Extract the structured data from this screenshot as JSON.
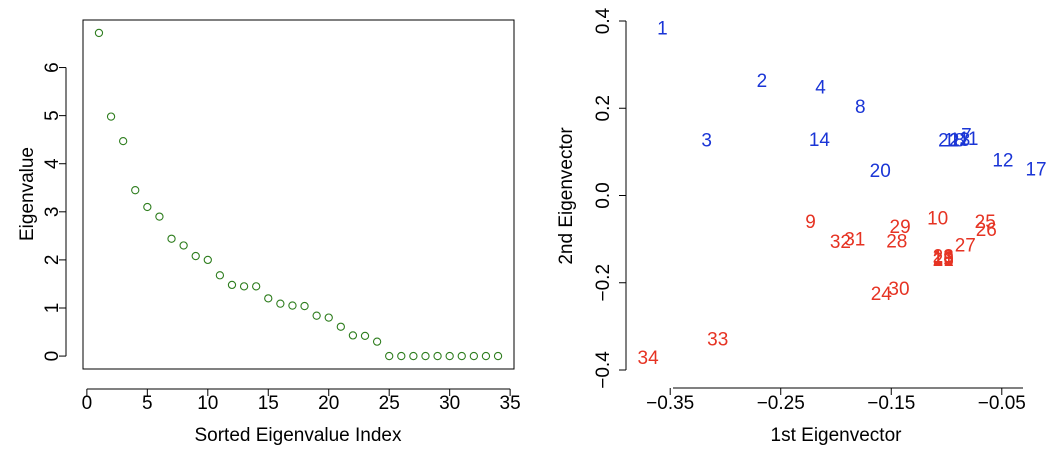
{
  "colors": {
    "scatter_point": "#2e7d1e",
    "group_blue": "#1a35d6",
    "group_red": "#e63323",
    "axis": "#000000"
  },
  "chart_data": [
    {
      "type": "scatter",
      "xlabel": "Sorted Eigenvalue Index",
      "ylabel": "Eigenvalue",
      "xlim": [
        0,
        35
      ],
      "ylim": [
        0,
        6.8
      ],
      "xticks": [
        0,
        5,
        10,
        15,
        20,
        25,
        30,
        35
      ],
      "yticks": [
        0,
        1,
        2,
        3,
        4,
        5,
        6
      ],
      "grid": false,
      "marker": "open-circle",
      "x": [
        1,
        2,
        3,
        4,
        5,
        6,
        7,
        8,
        9,
        10,
        11,
        12,
        13,
        14,
        15,
        16,
        17,
        18,
        19,
        20,
        21,
        22,
        23,
        24,
        25,
        26,
        27,
        28,
        29,
        30,
        31,
        32,
        33,
        34
      ],
      "y": [
        6.72,
        4.98,
        4.47,
        3.45,
        3.1,
        2.9,
        2.44,
        2.3,
        2.08,
        2.0,
        1.68,
        1.48,
        1.45,
        1.45,
        1.2,
        1.09,
        1.05,
        1.04,
        0.84,
        0.8,
        0.61,
        0.43,
        0.42,
        0.3,
        0,
        0,
        0,
        0,
        0,
        0,
        0,
        0,
        0,
        0
      ]
    },
    {
      "type": "scatter",
      "xlabel": "1st Eigenvector",
      "ylabel": "2nd Eigenvector",
      "xlim": [
        -0.39,
        -0.01
      ],
      "ylim": [
        -0.4,
        0.4
      ],
      "xticks": [
        -0.35,
        -0.25,
        -0.15,
        -0.05
      ],
      "xtick_labels": [
        "−0.35",
        "−0.25",
        "−0.15",
        "−0.05"
      ],
      "yticks": [
        -0.4,
        -0.2,
        0.0,
        0.2,
        0.4
      ],
      "ytick_labels": [
        "−0.4",
        "−0.2",
        "0.0",
        "0.2",
        "0.4"
      ],
      "grid": false,
      "marker": "text-label",
      "points": [
        {
          "label": "1",
          "x": -0.357,
          "y": 0.385,
          "group": "blue"
        },
        {
          "label": "2",
          "x": -0.267,
          "y": 0.265,
          "group": "blue"
        },
        {
          "label": "4",
          "x": -0.214,
          "y": 0.25,
          "group": "blue"
        },
        {
          "label": "8",
          "x": -0.178,
          "y": 0.205,
          "group": "blue"
        },
        {
          "label": "3",
          "x": -0.317,
          "y": 0.128,
          "group": "blue"
        },
        {
          "label": "14",
          "x": -0.215,
          "y": 0.13,
          "group": "blue"
        },
        {
          "label": "20",
          "x": -0.16,
          "y": 0.058,
          "group": "blue"
        },
        {
          "label": "22",
          "x": -0.098,
          "y": 0.128,
          "group": "blue"
        },
        {
          "label": "18",
          "x": -0.093,
          "y": 0.128,
          "group": "blue"
        },
        {
          "label": "13",
          "x": -0.088,
          "y": 0.13,
          "group": "blue"
        },
        {
          "label": "7",
          "x": -0.082,
          "y": 0.14,
          "group": "blue"
        },
        {
          "label": "11",
          "x": -0.08,
          "y": 0.132,
          "group": "blue"
        },
        {
          "label": "12",
          "x": -0.049,
          "y": 0.083,
          "group": "blue"
        },
        {
          "label": "17",
          "x": -0.019,
          "y": 0.062,
          "group": "blue"
        },
        {
          "label": "9",
          "x": -0.223,
          "y": -0.058,
          "group": "red"
        },
        {
          "label": "29",
          "x": -0.142,
          "y": -0.07,
          "group": "red"
        },
        {
          "label": "10",
          "x": -0.108,
          "y": -0.05,
          "group": "red"
        },
        {
          "label": "25",
          "x": -0.065,
          "y": -0.058,
          "group": "red"
        },
        {
          "label": "26",
          "x": -0.064,
          "y": -0.077,
          "group": "red"
        },
        {
          "label": "31",
          "x": -0.183,
          "y": -0.098,
          "group": "red"
        },
        {
          "label": "32",
          "x": -0.196,
          "y": -0.104,
          "group": "red"
        },
        {
          "label": "28",
          "x": -0.145,
          "y": -0.103,
          "group": "red"
        },
        {
          "label": "27",
          "x": -0.083,
          "y": -0.112,
          "group": "red"
        },
        {
          "label": "23",
          "x": -0.103,
          "y": -0.137,
          "group": "red"
        },
        {
          "label": "19",
          "x": -0.103,
          "y": -0.14,
          "group": "red"
        },
        {
          "label": "16",
          "x": -0.103,
          "y": -0.143,
          "group": "red"
        },
        {
          "label": "15",
          "x": -0.103,
          "y": -0.146,
          "group": "red"
        },
        {
          "label": "21",
          "x": -0.103,
          "y": -0.146,
          "group": "red"
        },
        {
          "label": "30",
          "x": -0.143,
          "y": -0.212,
          "group": "red"
        },
        {
          "label": "24",
          "x": -0.159,
          "y": -0.223,
          "group": "red"
        },
        {
          "label": "33",
          "x": -0.307,
          "y": -0.328,
          "group": "red"
        },
        {
          "label": "34",
          "x": -0.37,
          "y": -0.37,
          "group": "red"
        }
      ]
    }
  ]
}
